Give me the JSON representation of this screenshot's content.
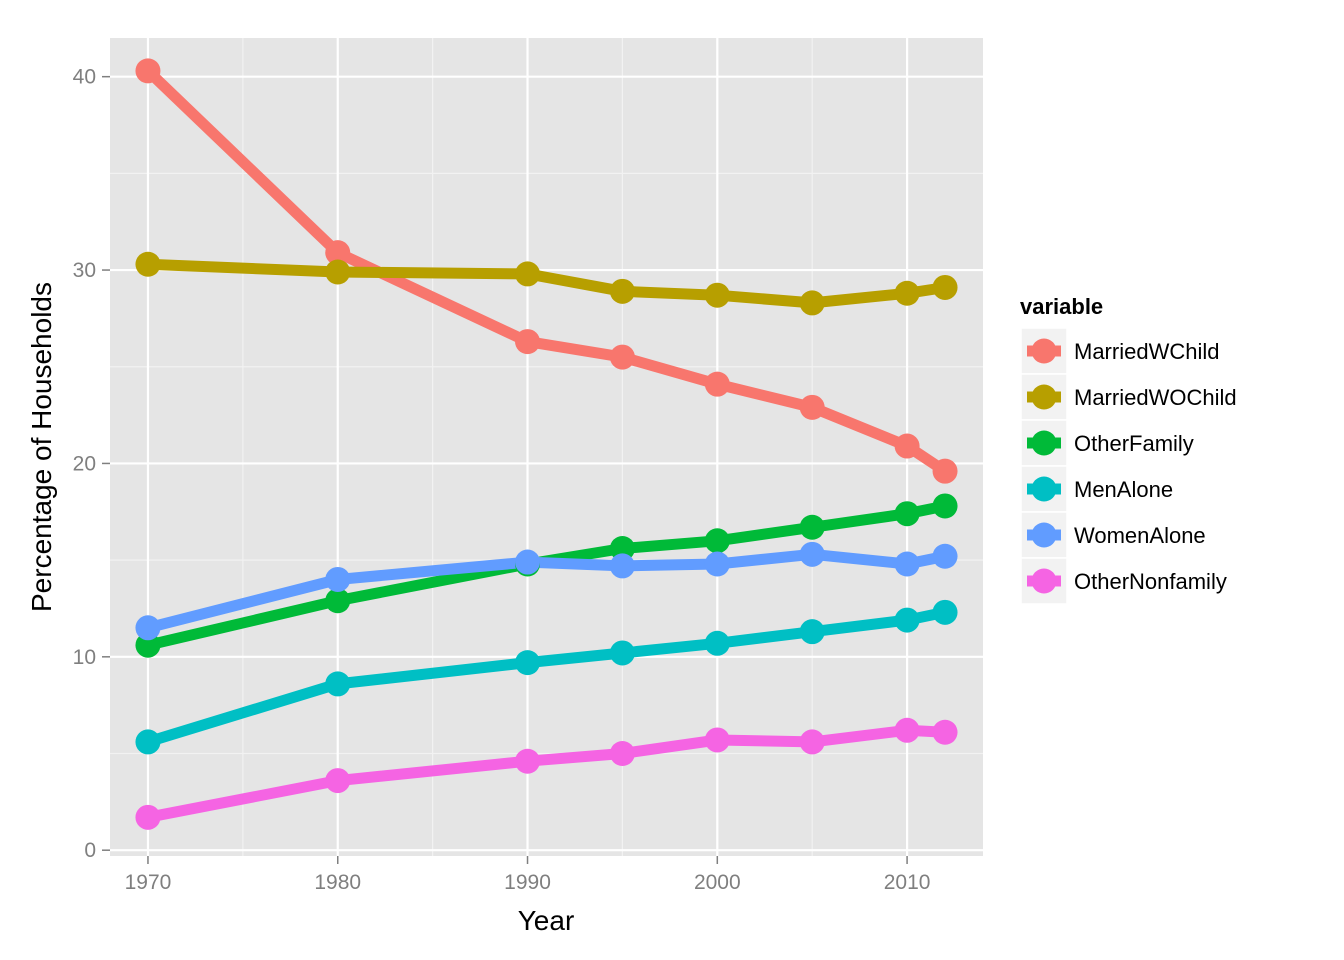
{
  "chart_data": {
    "type": "line",
    "title": "",
    "xlabel": "Year",
    "ylabel": "Percentage of Households",
    "x": [
      1970,
      1980,
      1990,
      1995,
      2000,
      2005,
      2010,
      2012
    ],
    "xlim": [
      1968,
      2014
    ],
    "ylim": [
      -0.3,
      42
    ],
    "x_ticks": [
      1970,
      1980,
      1990,
      2000,
      2010
    ],
    "y_ticks": [
      0,
      10,
      20,
      30,
      40
    ],
    "grid": true,
    "legend": {
      "title": "variable",
      "placement": "right"
    },
    "series": [
      {
        "name": "MarriedWChild",
        "color": "#F8766D",
        "values": [
          40.3,
          30.9,
          26.3,
          25.5,
          24.1,
          22.9,
          20.9,
          19.6
        ]
      },
      {
        "name": "MarriedWOChild",
        "color": "#B79F00",
        "values": [
          30.3,
          29.9,
          29.8,
          28.9,
          28.7,
          28.3,
          28.8,
          29.1
        ]
      },
      {
        "name": "OtherFamily",
        "color": "#00BA38",
        "values": [
          10.6,
          12.9,
          14.8,
          15.6,
          16.0,
          16.7,
          17.4,
          17.8
        ]
      },
      {
        "name": "MenAlone",
        "color": "#00BFC4",
        "values": [
          5.6,
          8.6,
          9.7,
          10.2,
          10.7,
          11.3,
          11.9,
          12.3
        ]
      },
      {
        "name": "WomenAlone",
        "color": "#619CFF",
        "values": [
          11.5,
          14.0,
          14.9,
          14.7,
          14.8,
          15.3,
          14.8,
          15.2
        ]
      },
      {
        "name": "OtherNonfamily",
        "color": "#F564E3",
        "values": [
          1.7,
          3.6,
          4.6,
          5.0,
          5.7,
          5.6,
          6.2,
          6.1
        ]
      }
    ]
  }
}
